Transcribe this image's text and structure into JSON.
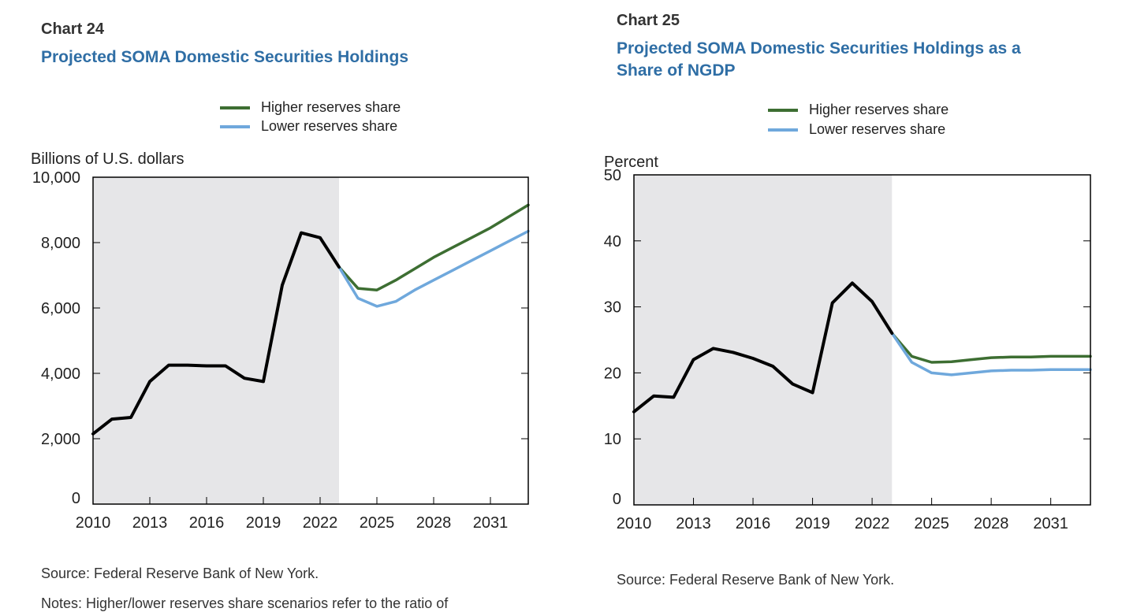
{
  "colors": {
    "historical": "#000000",
    "higher": "#3d6e32",
    "lower": "#6fa8dc",
    "shade": "#e6e6e8",
    "title": "#2f6ea5"
  },
  "chart_data": [
    {
      "type": "line",
      "chart_number": "Chart 24",
      "title": "Projected SOMA Domestic Securities Holdings",
      "ylabel": "Billions of U.S. dollars",
      "xlim": [
        2010,
        2033
      ],
      "ylim": [
        0,
        10000
      ],
      "yticks": [
        0,
        2000,
        4000,
        6000,
        8000,
        10000
      ],
      "ytick_labels": [
        "0",
        "2,000",
        "4,000",
        "6,000",
        "8,000",
        "10,000"
      ],
      "xticks": [
        2010,
        2013,
        2016,
        2019,
        2022,
        2025,
        2028,
        2031
      ],
      "xtick_labels": [
        "2010",
        "2013",
        "2016",
        "2019",
        "2022",
        "2025",
        "2028",
        "2031"
      ],
      "shaded_region": [
        2010,
        2023
      ],
      "legend": [
        "Higher reserves share",
        "Lower reserves share"
      ],
      "series": [
        {
          "key": "historical",
          "x": [
            2010,
            2011,
            2012,
            2013,
            2014,
            2015,
            2016,
            2017,
            2018,
            2019,
            2020,
            2021,
            2022,
            2023
          ],
          "values": [
            2150,
            2600,
            2650,
            3750,
            4250,
            4250,
            4230,
            4230,
            3850,
            3750,
            6700,
            8300,
            8150,
            7250
          ]
        },
        {
          "key": "higher",
          "name": "Higher reserves share",
          "x": [
            2023,
            2024,
            2025,
            2026,
            2027,
            2028,
            2029,
            2030,
            2031,
            2032,
            2033
          ],
          "values": [
            7250,
            6600,
            6550,
            6850,
            7200,
            7550,
            7850,
            8150,
            8450,
            8800,
            9150
          ]
        },
        {
          "key": "lower",
          "name": "Lower reserves share",
          "x": [
            2023,
            2024,
            2025,
            2026,
            2027,
            2028,
            2029,
            2030,
            2031,
            2032,
            2033
          ],
          "values": [
            7250,
            6300,
            6050,
            6200,
            6550,
            6850,
            7150,
            7450,
            7750,
            8050,
            8350
          ]
        }
      ],
      "source": "Source: Federal Reserve Bank of New York.",
      "note": "Notes: Higher/lower reserves share scenarios refer to the ratio of"
    },
    {
      "type": "line",
      "chart_number": "Chart 25",
      "title_lines": [
        "Projected SOMA Domestic Securities Holdings as a",
        "Share of NGDP"
      ],
      "ylabel": "Percent",
      "xlim": [
        2010,
        2033
      ],
      "ylim": [
        0,
        50
      ],
      "yticks": [
        0,
        10,
        20,
        30,
        40,
        50
      ],
      "ytick_labels": [
        "0",
        "10",
        "20",
        "30",
        "40",
        "50"
      ],
      "xticks": [
        2010,
        2013,
        2016,
        2019,
        2022,
        2025,
        2028,
        2031
      ],
      "xtick_labels": [
        "2010",
        "2013",
        "2016",
        "2019",
        "2022",
        "2025",
        "2028",
        "2031"
      ],
      "shaded_region": [
        2010,
        2023
      ],
      "legend": [
        "Higher reserves share",
        "Lower reserves share"
      ],
      "series": [
        {
          "key": "historical",
          "x": [
            2010,
            2011,
            2012,
            2013,
            2014,
            2015,
            2016,
            2017,
            2018,
            2019,
            2020,
            2021,
            2022,
            2023
          ],
          "values": [
            14.1,
            16.5,
            16.3,
            22.0,
            23.7,
            23.1,
            22.2,
            21.0,
            18.3,
            17.0,
            30.6,
            33.6,
            30.8,
            26.0
          ]
        },
        {
          "key": "higher",
          "name": "Higher reserves share",
          "x": [
            2023,
            2024,
            2025,
            2026,
            2027,
            2028,
            2029,
            2030,
            2031,
            2032,
            2033
          ],
          "values": [
            26.0,
            22.5,
            21.6,
            21.7,
            22.0,
            22.3,
            22.4,
            22.4,
            22.5,
            22.5,
            22.5
          ]
        },
        {
          "key": "lower",
          "name": "Lower reserves share",
          "x": [
            2023,
            2024,
            2025,
            2026,
            2027,
            2028,
            2029,
            2030,
            2031,
            2032,
            2033
          ],
          "values": [
            26.0,
            21.6,
            20.0,
            19.7,
            20.0,
            20.3,
            20.4,
            20.4,
            20.5,
            20.5,
            20.5
          ]
        }
      ],
      "source": "Source: Federal Reserve Bank of New York."
    }
  ]
}
